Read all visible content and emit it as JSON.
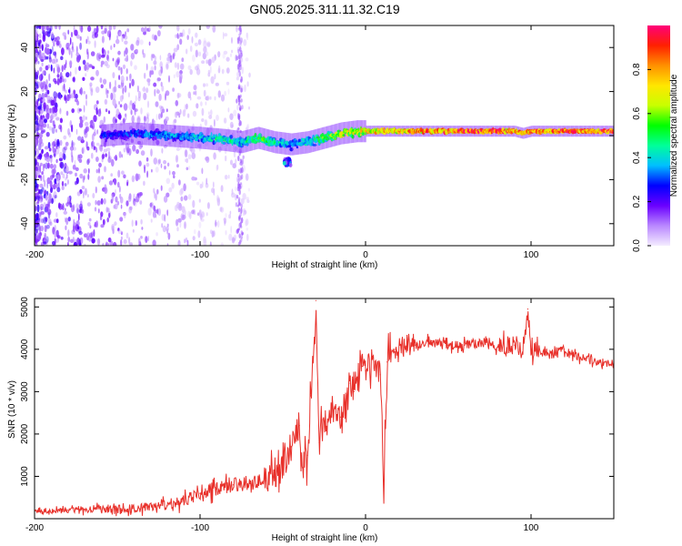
{
  "figure": {
    "title": "GN05.2025.311.11.32.C19"
  },
  "colors": {
    "line": "#e8302a",
    "colorbar_stops": [
      "#f4ecff",
      "#b987ff",
      "#6a00ff",
      "#0000ff",
      "#00bfff",
      "#00ff9a",
      "#00ff00",
      "#c8ff00",
      "#ffe600",
      "#ff9000",
      "#ff2000",
      "#ff007a"
    ]
  },
  "chart_data": [
    {
      "id": "spectrogram",
      "type": "heatmap",
      "title": "GN05.2025.311.11.32.C19",
      "xlabel": "Height of straight line (km)",
      "ylabel": "Frequency (Hz)",
      "xlim": [
        -200,
        150
      ],
      "ylim": [
        -50,
        50
      ],
      "xticks": [
        -200,
        -100,
        0,
        100
      ],
      "yticks": [
        -40,
        -20,
        0,
        20,
        40
      ],
      "grid": false,
      "colorbar": {
        "label": "Normalized spectral amplitude",
        "range": [
          0,
          1
        ],
        "ticks": [
          "0.0",
          "0.2",
          "0.4",
          "0.6",
          "0.8"
        ]
      },
      "ridge": {
        "x": [
          -160,
          -140,
          -120,
          -100,
          -85,
          -75,
          -65,
          -55,
          -45,
          -35,
          -25,
          -15,
          -5,
          5,
          20,
          40,
          60,
          80,
          90,
          95,
          100,
          120,
          150
        ],
        "freq": [
          0,
          1,
          0,
          -1,
          -2,
          -3,
          -1,
          -3,
          -4,
          -3,
          -1,
          1,
          2,
          2,
          2,
          2,
          2,
          2,
          2,
          1,
          2,
          2,
          2
        ],
        "amplitude": [
          0.3,
          0.35,
          0.4,
          0.45,
          0.5,
          0.45,
          0.6,
          0.5,
          0.4,
          0.5,
          0.6,
          0.7,
          0.75,
          0.8,
          0.85,
          0.9,
          0.95,
          0.95,
          0.9,
          0.85,
          0.9,
          0.95,
          0.95
        ]
      },
      "secondary_blob": {
        "x": -47,
        "freq": -12
      }
    },
    {
      "id": "snr",
      "type": "line",
      "xlabel": "Height of straight line (km)",
      "ylabel": "SNR (10 * v/v)",
      "xlim": [
        -200,
        150
      ],
      "ylim": [
        0,
        5200
      ],
      "xticks": [
        -200,
        -100,
        0,
        100
      ],
      "yticks": [
        1000,
        2000,
        3000,
        4000,
        5000
      ],
      "grid": false,
      "series": [
        {
          "name": "SNR",
          "x": [
            -200,
            -180,
            -160,
            -140,
            -120,
            -110,
            -100,
            -90,
            -80,
            -70,
            -60,
            -50,
            -45,
            -40,
            -38,
            -35,
            -33,
            -30,
            -28,
            -25,
            -20,
            -15,
            -12,
            -10,
            -7,
            -5,
            -2,
            0,
            5,
            9,
            11,
            13,
            18,
            25,
            30,
            40,
            50,
            60,
            70,
            80,
            90,
            95,
            98,
            100,
            110,
            120,
            130,
            140,
            150
          ],
          "y": [
            180,
            200,
            220,
            250,
            310,
            420,
            600,
            700,
            800,
            850,
            900,
            1200,
            1700,
            2200,
            1200,
            1500,
            2900,
            5150,
            1800,
            2300,
            2600,
            2400,
            2900,
            3200,
            3000,
            3300,
            3600,
            3500,
            3700,
            3400,
            800,
            3700,
            4000,
            4100,
            4100,
            4200,
            4100,
            4100,
            4150,
            4050,
            4100,
            3900,
            4950,
            4000,
            3900,
            4000,
            3800,
            3700,
            3700
          ]
        }
      ]
    }
  ]
}
